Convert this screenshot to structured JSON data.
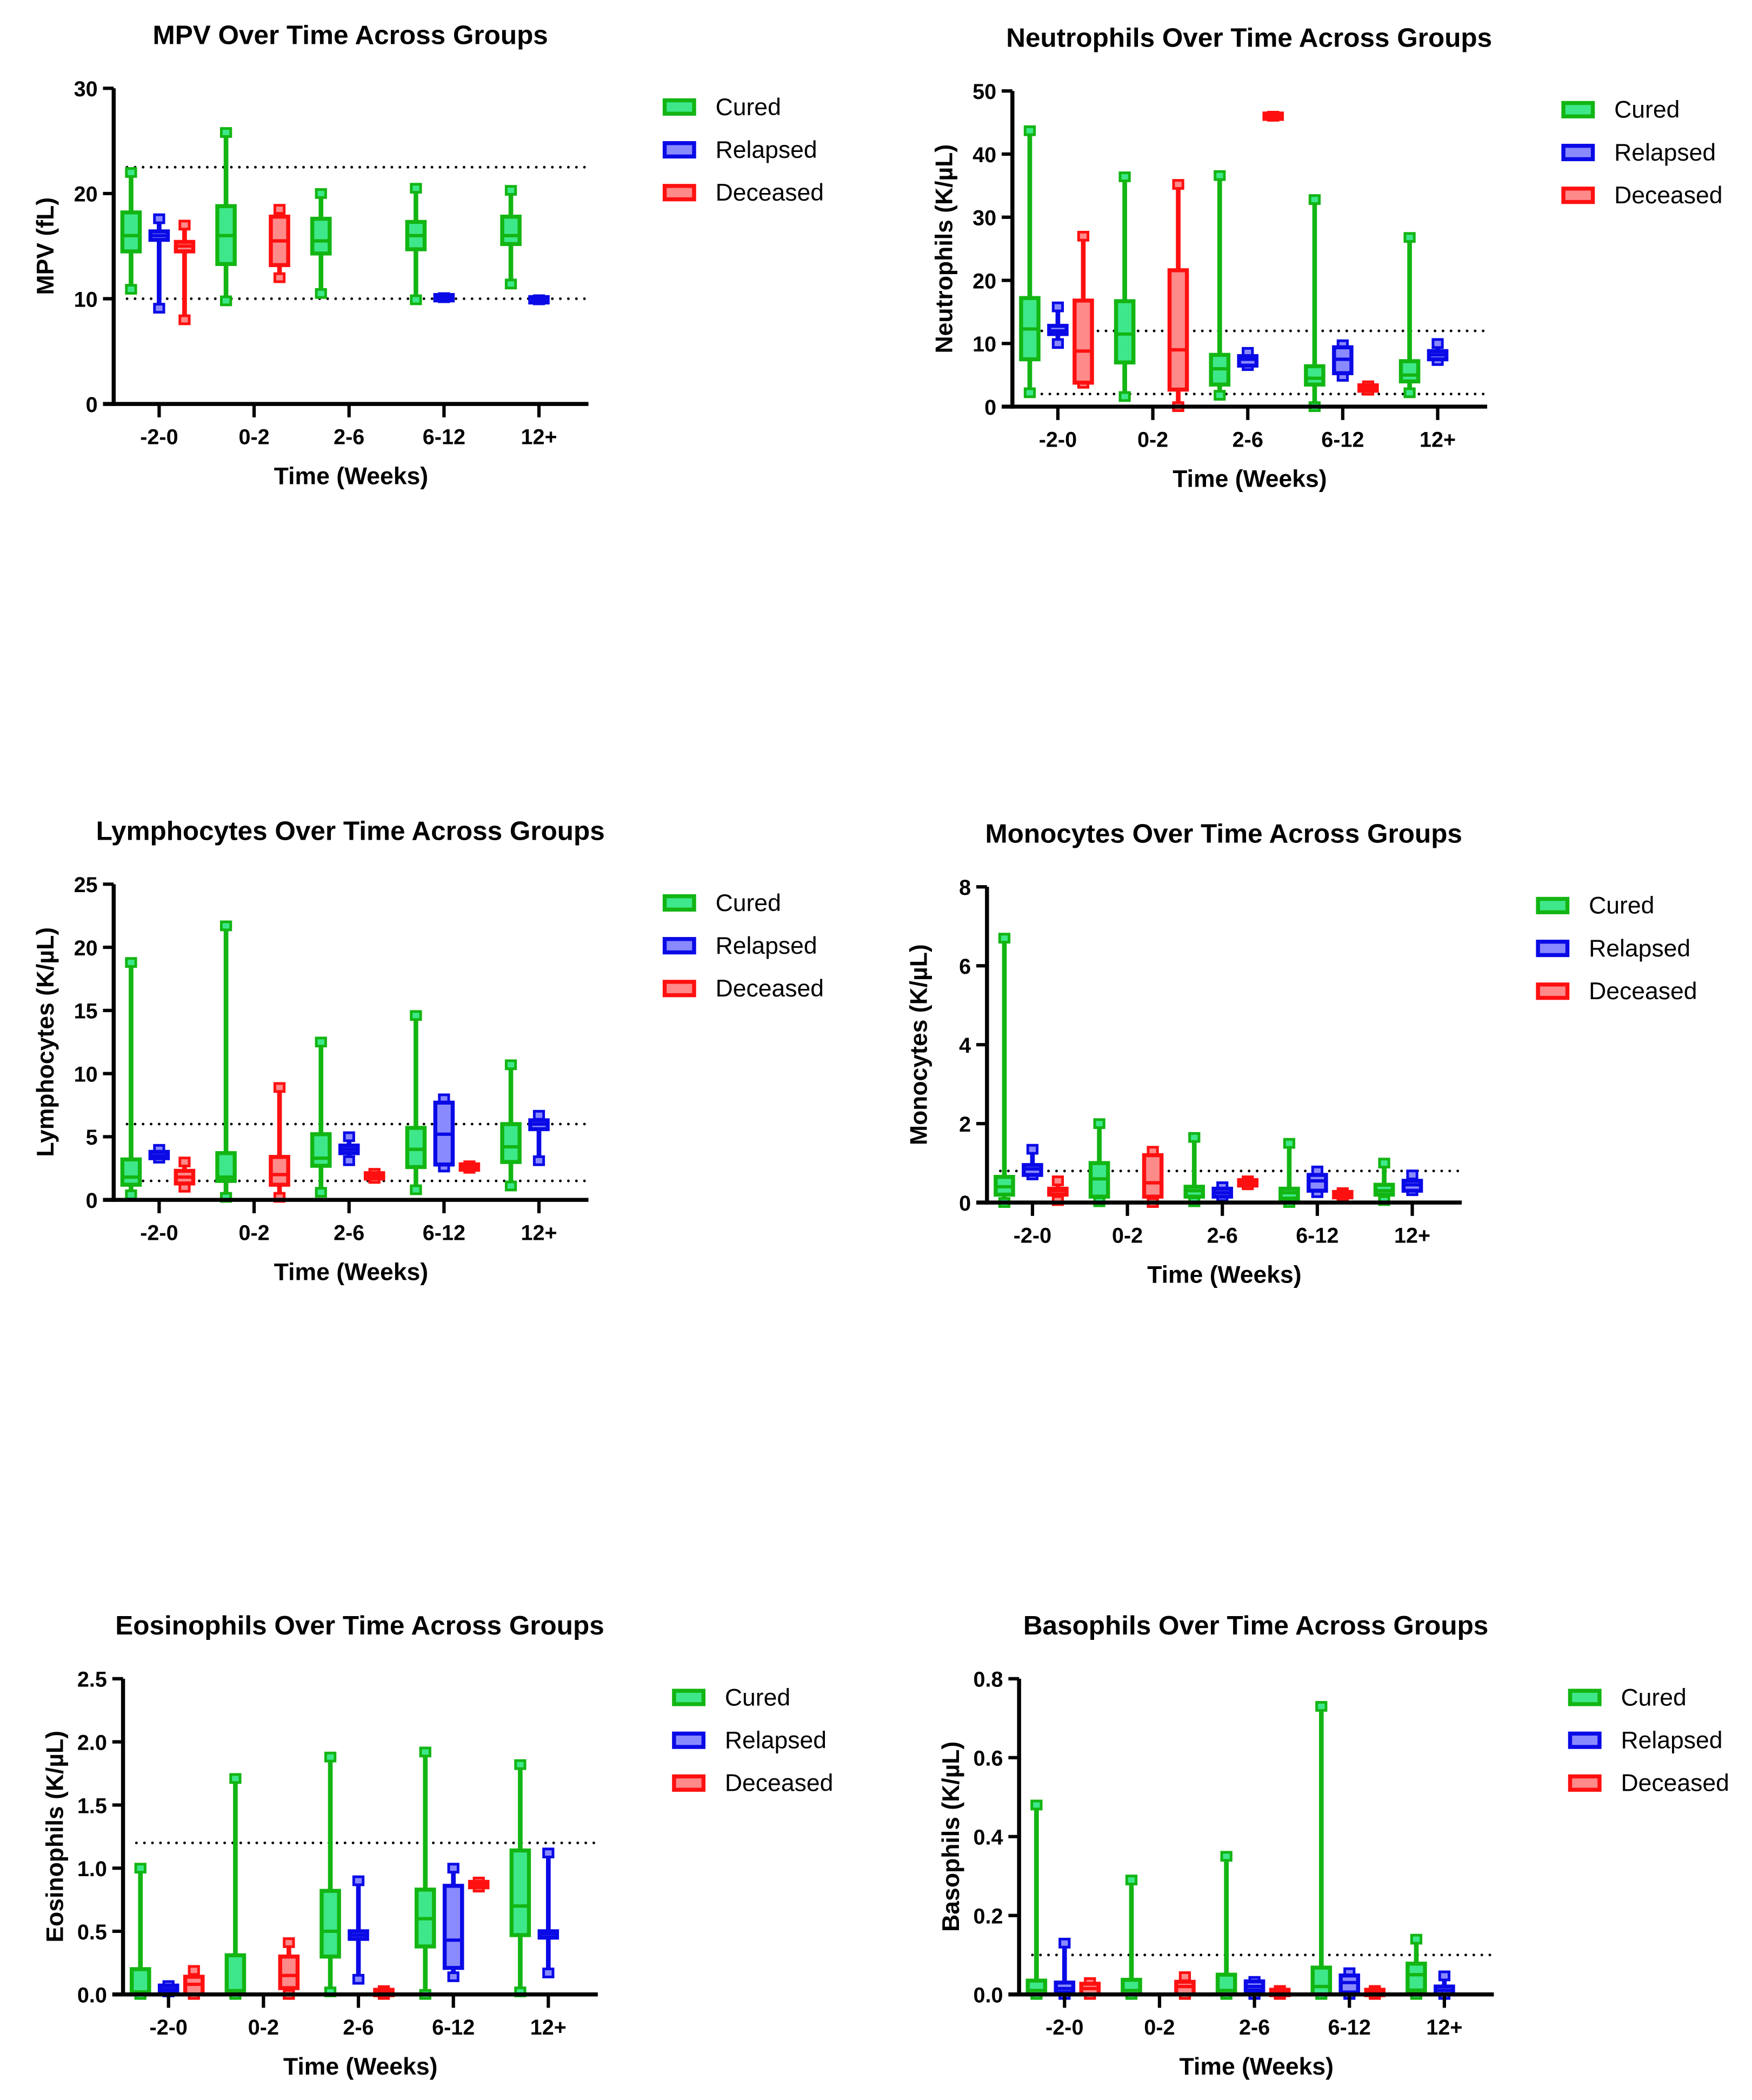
{
  "legend": [
    "Cured",
    "Relapsed",
    "Deceased"
  ],
  "colors": {
    "Cured": {
      "stroke": "#13b513",
      "fill": "#3ee88a"
    },
    "Relapsed": {
      "stroke": "#0a0ae6",
      "fill": "#8a8aff"
    },
    "Deceased": {
      "stroke": "#ff1010",
      "fill": "#ff8a8a"
    }
  },
  "chart_data": [
    {
      "type": "box",
      "title": "MPV Over Time Across Groups",
      "xlabel": "Time (Weeks)",
      "ylabel": "MPV (fL)",
      "categories": [
        "-2-0",
        "0-2",
        "2-6",
        "6-12",
        "12+"
      ],
      "ylim": [
        0,
        30
      ],
      "yticks": [
        0,
        10,
        20,
        30
      ],
      "ytick_labels": [
        "0",
        "10",
        "20",
        "30"
      ],
      "reference_lines": [
        22.5,
        10
      ],
      "series": [
        {
          "name": "Cured",
          "boxes": [
            [
              10.9,
              14.5,
              16,
              18.2,
              22
            ],
            [
              9.8,
              13.3,
              16,
              18.8,
              25.8
            ],
            [
              10.5,
              14.3,
              15.5,
              17.6,
              20
            ],
            [
              9.9,
              14.7,
              16,
              17.3,
              20.5
            ],
            [
              11.4,
              15.2,
              16,
              17.8,
              20.3
            ]
          ]
        },
        {
          "name": "Relapsed",
          "boxes": [
            [
              9.1,
              15.6,
              16,
              16.4,
              17.6
            ],
            null,
            null,
            [
              10.1,
              10.1,
              10.1,
              10.1,
              10.1
            ],
            [
              9.9,
              9.9,
              9.9,
              9.9,
              9.9
            ]
          ]
        },
        {
          "name": "Deceased",
          "boxes": [
            [
              8,
              14.5,
              15,
              15.4,
              17
            ],
            [
              12,
              13.2,
              15.5,
              17.8,
              18.5
            ],
            null,
            null,
            null
          ]
        }
      ]
    },
    {
      "type": "box",
      "title": "Neutrophils Over Time Across Groups",
      "xlabel": "Time (Weeks)",
      "ylabel": "Neutrophils (K/µL)",
      "categories": [
        "-2-0",
        "0-2",
        "2-6",
        "6-12",
        "12+"
      ],
      "ylim": [
        0,
        50
      ],
      "yticks": [
        0,
        10,
        20,
        30,
        40,
        50
      ],
      "ytick_labels": [
        "0",
        "10",
        "20",
        "30",
        "40",
        "50"
      ],
      "reference_lines": [
        12,
        2
      ],
      "series": [
        {
          "name": "Cured",
          "boxes": [
            [
              2.2,
              7.5,
              12.3,
              17.2,
              43.7
            ],
            [
              1.6,
              7,
              11.5,
              16.7,
              36.4
            ],
            [
              1.8,
              3.5,
              6,
              8.2,
              36.6
            ],
            [
              0,
              3.5,
              4.5,
              6.4,
              32.8
            ],
            [
              2.2,
              4,
              5,
              7.2,
              26.8
            ]
          ]
        },
        {
          "name": "Relapsed",
          "boxes": [
            [
              10,
              11.5,
              12,
              12.8,
              15.8
            ],
            null,
            [
              6.5,
              6.5,
              7.5,
              8,
              8.6
            ],
            [
              4.8,
              5.3,
              7.5,
              9.4,
              9.8
            ],
            [
              7.3,
              7.5,
              8.2,
              8.8,
              10
            ]
          ]
        },
        {
          "name": "Deceased",
          "boxes": [
            [
              3.7,
              3.8,
              8.8,
              16.8,
              27
            ],
            [
              0,
              2.7,
              9,
              21.6,
              35.2
            ],
            [
              46,
              46,
              46,
              46,
              46
            ],
            [
              2.6,
              2.6,
              3,
              3.3,
              3.3
            ],
            null
          ]
        }
      ]
    },
    {
      "type": "box",
      "title": "Lymphocytes Over Time Across Groups",
      "xlabel": "Time (Weeks)",
      "ylabel": "Lymphocytes (K/µL)",
      "categories": [
        "-2-0",
        "0-2",
        "2-6",
        "6-12",
        "12+"
      ],
      "ylim": [
        0,
        25
      ],
      "yticks": [
        0,
        5,
        10,
        15,
        20,
        25
      ],
      "ytick_labels": [
        "0",
        "5",
        "10",
        "15",
        "20",
        "25"
      ],
      "reference_lines": [
        6,
        1.5
      ],
      "series": [
        {
          "name": "Cured",
          "boxes": [
            [
              0.4,
              1.2,
              1.8,
              3.2,
              18.8
            ],
            [
              0.2,
              1.5,
              1.8,
              3.7,
              21.7
            ],
            [
              0.6,
              2.7,
              3.3,
              5.2,
              12.5
            ],
            [
              0.8,
              2.6,
              4,
              5.7,
              14.6
            ],
            [
              1.1,
              3,
              4.2,
              6,
              10.7
            ]
          ]
        },
        {
          "name": "Relapsed",
          "boxes": [
            [
              3.3,
              3.3,
              3.5,
              3.8,
              4
            ],
            null,
            [
              3.1,
              3.7,
              4,
              4.3,
              5
            ],
            [
              2.6,
              2.8,
              5.2,
              7.7,
              8
            ],
            [
              3.1,
              5.6,
              6,
              6.3,
              6.7
            ]
          ]
        },
        {
          "name": "Deceased",
          "boxes": [
            [
              1,
              1.3,
              1.8,
              2.3,
              3
            ],
            [
              0.2,
              1.2,
              2,
              3.4,
              8.9
            ],
            [
              1.7,
              1.7,
              1.9,
              2.1,
              2.1
            ],
            [
              2.5,
              2.5,
              2.6,
              2.7,
              2.7
            ],
            null
          ]
        }
      ]
    },
    {
      "type": "box",
      "title": "Monocytes Over Time Across Groups",
      "xlabel": "Time (Weeks)",
      "ylabel": "Monocytes (K/µL)",
      "categories": [
        "-2-0",
        "0-2",
        "2-6",
        "6-12",
        "12+"
      ],
      "ylim": [
        0,
        8
      ],
      "yticks": [
        0,
        2,
        4,
        6,
        8
      ],
      "ytick_labels": [
        "0",
        "2",
        "4",
        "6",
        "8"
      ],
      "reference_lines": [
        0.8
      ],
      "series": [
        {
          "name": "Cured",
          "boxes": [
            [
              0,
              0.2,
              0.4,
              0.65,
              6.7
            ],
            [
              0.02,
              0.15,
              0.6,
              1.0,
              2.0
            ],
            [
              0.02,
              0.15,
              0.3,
              0.4,
              1.65
            ],
            [
              0,
              0.1,
              0.25,
              0.35,
              1.5
            ],
            [
              0.05,
              0.2,
              0.3,
              0.45,
              1.0
            ]
          ]
        },
        {
          "name": "Relapsed",
          "boxes": [
            [
              0.7,
              0.7,
              0.85,
              0.95,
              1.35
            ],
            null,
            [
              0.15,
              0.15,
              0.25,
              0.35,
              0.4
            ],
            [
              0.25,
              0.3,
              0.55,
              0.7,
              0.8
            ],
            [
              0.3,
              0.3,
              0.45,
              0.55,
              0.7
            ]
          ]
        },
        {
          "name": "Deceased",
          "boxes": [
            [
              0.05,
              0.2,
              0.3,
              0.35,
              0.55
            ],
            [
              0,
              0.15,
              0.5,
              1.2,
              1.3
            ],
            [
              0.45,
              0.45,
              0.5,
              0.55,
              0.55
            ],
            [
              0.15,
              0.15,
              0.2,
              0.25,
              0.25
            ],
            null
          ]
        }
      ]
    },
    {
      "type": "box",
      "title": "Eosinophils Over Time Across Groups",
      "xlabel": "Time (Weeks)",
      "ylabel": "Eosinophils (K/µL)",
      "categories": [
        "-2-0",
        "0-2",
        "2-6",
        "6-12",
        "12+"
      ],
      "ylim": [
        0,
        2.5
      ],
      "yticks": [
        0,
        0.5,
        1,
        1.5,
        2,
        2.5
      ],
      "ytick_labels": [
        "0.0",
        "0.5",
        "1.0",
        "1.5",
        "2.0",
        "2.5"
      ],
      "reference_lines": [
        1.2
      ],
      "series": [
        {
          "name": "Cured",
          "boxes": [
            [
              0,
              0,
              0.02,
              0.2,
              1.0
            ],
            [
              0,
              0,
              0.03,
              0.31,
              1.71
            ],
            [
              0.02,
              0.3,
              0.5,
              0.82,
              1.88
            ],
            [
              0,
              0.38,
              0.6,
              0.83,
              1.92
            ],
            [
              0.02,
              0.47,
              0.7,
              1.14,
              1.82
            ]
          ]
        },
        {
          "name": "Relapsed",
          "boxes": [
            [
              0.02,
              0.02,
              0.04,
              0.07,
              0.07
            ],
            null,
            [
              0.12,
              0.44,
              0.47,
              0.5,
              0.9
            ],
            [
              0.14,
              0.21,
              0.43,
              0.86,
              1.0
            ],
            [
              0.17,
              0.45,
              0.48,
              0.5,
              1.12
            ]
          ]
        },
        {
          "name": "Deceased",
          "boxes": [
            [
              0,
              0,
              0.08,
              0.14,
              0.19
            ],
            [
              0,
              0.05,
              0.15,
              0.3,
              0.41
            ],
            [
              0,
              0,
              0.02,
              0.03,
              0.03
            ],
            [
              0.85,
              0.85,
              0.87,
              0.89,
              0.89
            ],
            null
          ]
        }
      ]
    },
    {
      "type": "box",
      "title": "Basophils Over Time Across Groups",
      "xlabel": "Time (Weeks)",
      "ylabel": "Basophils (K/µL)",
      "categories": [
        "-2-0",
        "0-2",
        "2-6",
        "6-12",
        "12+"
      ],
      "ylim": [
        0,
        0.8
      ],
      "yticks": [
        0,
        0.2,
        0.4,
        0.6,
        0.8
      ],
      "ytick_labels": [
        "0.0",
        "0.2",
        "0.4",
        "0.6",
        "0.8"
      ],
      "reference_lines": [
        0.1
      ],
      "series": [
        {
          "name": "Cured",
          "boxes": [
            [
              0,
              0,
              0.01,
              0.035,
              0.48
            ],
            [
              0,
              0,
              0.01,
              0.037,
              0.29
            ],
            [
              0,
              0,
              0.01,
              0.05,
              0.35
            ],
            [
              0,
              0,
              0.02,
              0.068,
              0.73
            ],
            [
              0,
              0.01,
              0.05,
              0.078,
              0.14
            ]
          ]
        },
        {
          "name": "Relapsed",
          "boxes": [
            [
              0,
              0.005,
              0.015,
              0.03,
              0.13
            ],
            null,
            [
              0,
              0.01,
              0.02,
              0.033,
              0.033
            ],
            [
              0,
              0.005,
              0.03,
              0.048,
              0.055
            ],
            [
              0,
              0,
              0.01,
              0.02,
              0.047
            ]
          ]
        },
        {
          "name": "Deceased",
          "boxes": [
            [
              0,
              0,
              0.015,
              0.027,
              0.03
            ],
            [
              0,
              0,
              0.02,
              0.032,
              0.045
            ],
            [
              0,
              0,
              0.005,
              0.01,
              0.01
            ],
            [
              0,
              0,
              0.005,
              0.01,
              0.01
            ],
            null
          ]
        }
      ]
    }
  ]
}
